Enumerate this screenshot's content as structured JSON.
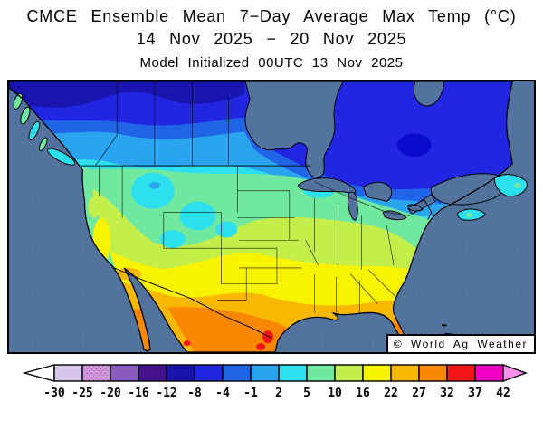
{
  "header": {
    "line1": "CMCE Ensemble Mean 7−Day Average Max Temp (°C)",
    "line2": "14 Nov 2025 − 20 Nov 2025",
    "line3": "Model Initialized 00UTC 13 Nov 2025"
  },
  "map": {
    "watermark": "© World Ag Weather",
    "region": "North America",
    "ocean_color": "#52739E",
    "coastline_color": "#000000"
  },
  "mapColors": {
    "navy_base": "#1A14B0",
    "navy_spot": "#0B0BCE",
    "blue1": "#2026E2",
    "blue2": "#2064E8",
    "azure": "#2BA4F0",
    "cyan": "#2CE0F0",
    "mint": "#70E8A0",
    "ygreen": "#C4EE4A",
    "yellow": "#F8F400",
    "amber": "#F9B800",
    "orange": "#F98800",
    "red": "#F81414",
    "water": "#52739E"
  },
  "colorbar": {
    "boundary_labels": [
      "-30",
      "-25",
      "-20",
      "-16",
      "-12",
      "-8",
      "-4",
      "-1",
      "2",
      "5",
      "10",
      "16",
      "22",
      "27",
      "32",
      "37",
      "42"
    ],
    "cell_colors": [
      "#D8C6EA",
      "#C9A0DA",
      "#8A5CC0",
      "#45128E",
      "#1812AE",
      "#2026E2",
      "#2064E8",
      "#2BA4F0",
      "#2CE0F0",
      "#70E8A0",
      "#C4EE4A",
      "#F8F400",
      "#F9B800",
      "#F98800",
      "#F81414",
      "#F000C2"
    ],
    "left_arrow_color": "#FFFFFF",
    "right_arrow_color": "#F990EE",
    "speckle_color": "#E23CC8",
    "units": "°C"
  }
}
